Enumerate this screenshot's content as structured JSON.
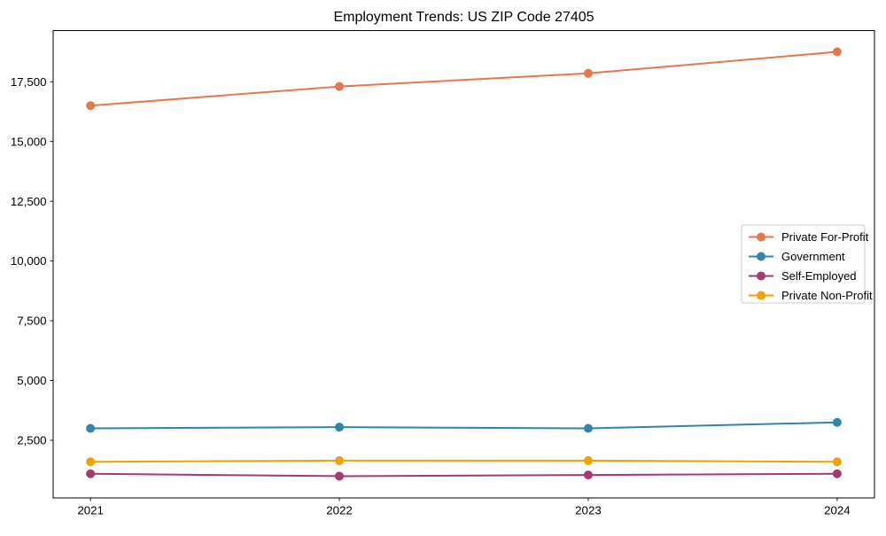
{
  "chart_data": {
    "type": "line",
    "title": "Employment Trends: US ZIP Code 27405",
    "xlabel": "",
    "ylabel": "",
    "categories": [
      2021,
      2022,
      2023,
      2024
    ],
    "series": [
      {
        "name": "Private For-Profit",
        "color": "#E8764B",
        "values": [
          16500,
          17300,
          17850,
          18750
        ]
      },
      {
        "name": "Government",
        "color": "#2E86AB",
        "values": [
          3000,
          3050,
          3000,
          3250
        ]
      },
      {
        "name": "Self-Employed",
        "color": "#A23B72",
        "values": [
          1100,
          1000,
          1050,
          1100
        ]
      },
      {
        "name": "Private Non-Profit",
        "color": "#F0A202",
        "values": [
          1600,
          1650,
          1650,
          1600
        ]
      }
    ],
    "yticks": [
      2500,
      5000,
      7500,
      10000,
      12500,
      15000,
      17500
    ],
    "ylim": [
      90,
      19640
    ],
    "xlim": [
      2020.85,
      2024.15
    ],
    "grid": false,
    "marker": "circle",
    "legend_position": "center-right",
    "frame_color": "#000000",
    "legend_border_color": "#cccccc"
  }
}
